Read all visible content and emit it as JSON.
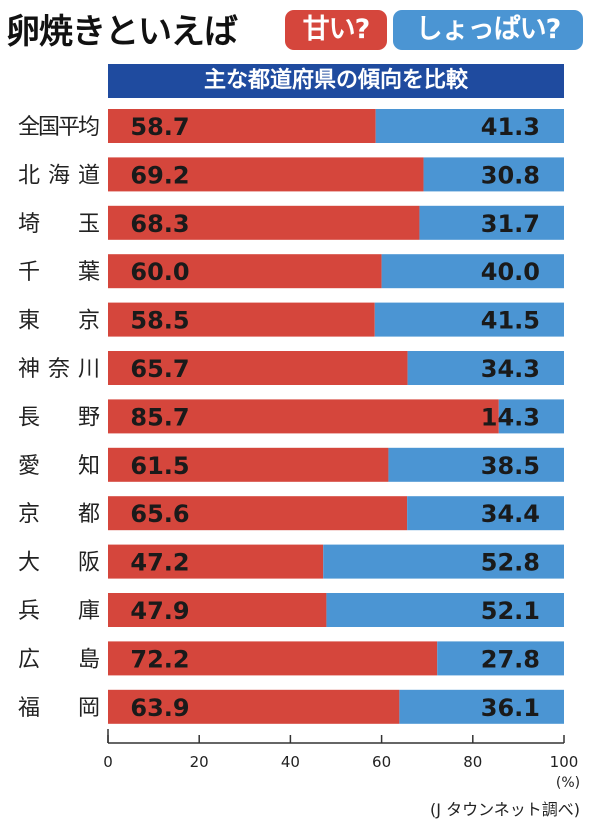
{
  "header": {
    "title": "卵焼きといえば",
    "badge_sweet": "甘い?",
    "badge_salty": "しょっぱい?",
    "subtitle": "主な都道府県の傾向を比較"
  },
  "colors": {
    "sweet": "#d5463c",
    "salty": "#4b95d3",
    "subtitle_bg": "#1f4b9f"
  },
  "source": "(J タウンネット調べ)",
  "chart_data": {
    "type": "bar",
    "orientation": "horizontal",
    "stacked": true,
    "categories": [
      "全国平均",
      "北 海 道",
      "埼　　玉",
      "千　　葉",
      "東　　京",
      "神 奈 川",
      "長　　野",
      "愛　　知",
      "京　　都",
      "大　　阪",
      "兵　　庫",
      "広　　島",
      "福　　岡"
    ],
    "series": [
      {
        "name": "甘い?",
        "color": "#d5463c",
        "values": [
          58.7,
          69.2,
          68.3,
          60.0,
          58.5,
          65.7,
          85.7,
          61.5,
          65.6,
          47.2,
          47.9,
          72.2,
          63.9
        ]
      },
      {
        "name": "しょっぱい?",
        "color": "#4b95d3",
        "values": [
          41.3,
          30.8,
          31.7,
          40.0,
          41.5,
          34.3,
          14.3,
          38.5,
          34.4,
          52.8,
          52.1,
          27.8,
          36.1
        ]
      }
    ],
    "value_labels": [
      [
        "58.7",
        "69.2",
        "68.3",
        "60.0",
        "58.5",
        "65.7",
        "85.7",
        "61.5",
        "65.6",
        "47.2",
        "47.9",
        "72.2",
        "63.9"
      ],
      [
        "41.3",
        "30.8",
        "31.7",
        "40.0",
        "41.5",
        "34.3",
        "14.3",
        "38.5",
        "34.4",
        "52.8",
        "52.1",
        "27.8",
        "36.1"
      ]
    ],
    "xlim": [
      0,
      100
    ],
    "xticks": [
      "0",
      "20",
      "40",
      "60",
      "80",
      "100"
    ],
    "xunit": "(%)",
    "grid": false
  }
}
